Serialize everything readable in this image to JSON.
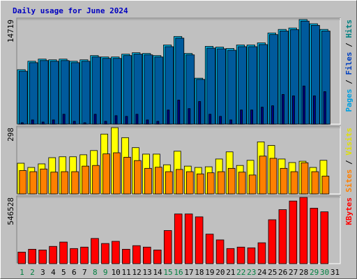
{
  "chart_data": [
    {
      "type": "bar",
      "title": "Daily usage for June 2024",
      "title_color": "#0000c0",
      "legend_separator": " / ",
      "ylim": [
        0,
        14719
      ],
      "yticks": [
        14719
      ],
      "series": [
        {
          "name": "Pages",
          "color": "#000080",
          "legend_color": "#00a0e0",
          "values": [
            199,
            597,
            298,
            597,
            1392,
            398,
            199,
            1392,
            398,
            1193,
            1094,
            1392,
            597,
            398,
            1989,
            3381,
            2188,
            3182,
            1392,
            1094,
            597,
            1989,
            1989,
            2387,
            2586,
            4177,
            3978,
            5370,
            3978,
            4575,
            null
          ]
        },
        {
          "name": "Files",
          "color": "#005a9c",
          "legend_color": "#0040c0",
          "values": [
            7450,
            8650,
            8950,
            8850,
            8950,
            8650,
            8850,
            9450,
            9250,
            9250,
            9650,
            9850,
            9750,
            9450,
            10900,
            12100,
            9750,
            6300,
            10700,
            10600,
            10400,
            10900,
            10900,
            11200,
            12600,
            13100,
            13300,
            14500,
            13900,
            13100,
            null
          ]
        },
        {
          "name": "Hits",
          "color": "#00b4e6",
          "legend_color": "#008080",
          "values": [
            7658,
            8851,
            9150,
            9050,
            9150,
            8851,
            9050,
            9647,
            9448,
            9448,
            9846,
            10045,
            9945,
            9647,
            11139,
            12332,
            9945,
            6464,
            10940,
            10840,
            10641,
            11139,
            11139,
            11437,
            12829,
            13326,
            13526,
            14719,
            14122,
            13326,
            null
          ]
        }
      ]
    },
    {
      "type": "bar",
      "legend_separator": " / ",
      "ylim": [
        0,
        298
      ],
      "yticks": [
        298
      ],
      "series": [
        {
          "name": "Sites",
          "color": "#ff8000",
          "legend_color": "#ff8000",
          "values": [
            105,
            100,
            112,
            98,
            100,
            100,
            125,
            128,
            180,
            185,
            165,
            150,
            115,
            120,
            100,
            110,
            100,
            90,
            95,
            100,
            115,
            98,
            85,
            170,
            160,
            115,
            100,
            140,
            100,
            80,
            null
          ]
        },
        {
          "name": "Visits",
          "color": "#ffff00",
          "legend_color": "#e0e000",
          "values": [
            138,
            119,
            135,
            163,
            167,
            167,
            176,
            195,
            269,
            298,
            253,
            208,
            179,
            179,
            131,
            192,
            125,
            119,
            122,
            157,
            189,
            128,
            151,
            234,
            218,
            157,
            141,
            147,
            119,
            151,
            null
          ]
        }
      ]
    },
    {
      "type": "bar",
      "ylim": [
        0,
        546528
      ],
      "yticks": [
        546528
      ],
      "categories": [
        "1",
        "2",
        "3",
        "4",
        "5",
        "6",
        "7",
        "8",
        "9",
        "10",
        "11",
        "12",
        "13",
        "14",
        "15",
        "16",
        "17",
        "18",
        "19",
        "20",
        "21",
        "22",
        "23",
        "24",
        "25",
        "26",
        "27",
        "28",
        "29",
        "30",
        "31"
      ],
      "category_colors": [
        "#008040",
        "#008040",
        "#000000",
        "#000000",
        "#000000",
        "#000000",
        "#000000",
        "#008040",
        "#008040",
        "#000000",
        "#000000",
        "#000000",
        "#000000",
        "#000000",
        "#008040",
        "#008040",
        "#000000",
        "#000000",
        "#000000",
        "#000000",
        "#000000",
        "#008040",
        "#008040",
        "#000000",
        "#000000",
        "#000000",
        "#000000",
        "#000000",
        "#008040",
        "#008040",
        "#000000"
      ],
      "series": [
        {
          "name": "KBytes",
          "color": "#ff0000",
          "legend_color": "#ff0000",
          "values": [
            95040,
            118800,
            112860,
            142560,
            178200,
            124740,
            136620,
            207900,
            166320,
            184140,
            118800,
            148500,
            136620,
            112860,
            273240,
            409860,
            409860,
            386100,
            243540,
            196020,
            124740,
            136620,
            130680,
            172260,
            362340,
            445500,
            516780,
            546528,
            457380,
            427680,
            null
          ]
        }
      ]
    }
  ]
}
